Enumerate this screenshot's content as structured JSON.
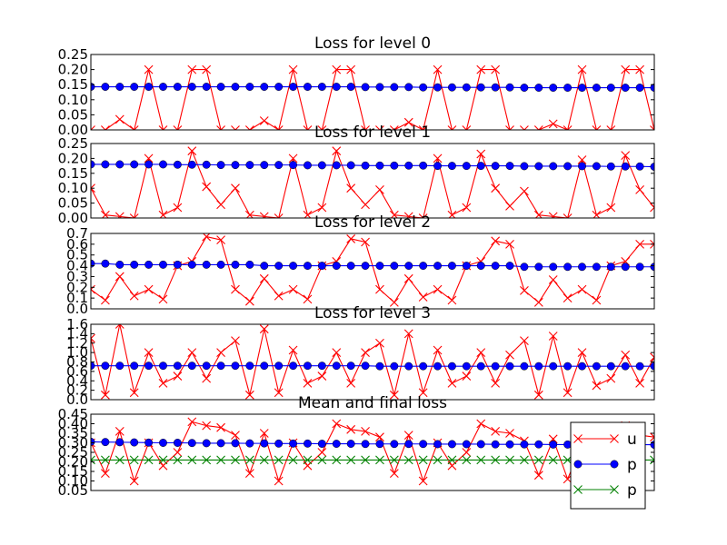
{
  "chart_data": [
    {
      "type": "line",
      "title": "Loss for level 0",
      "ylim": [
        0,
        0.25
      ],
      "yticks": [
        "0.00",
        "0.05",
        "0.10",
        "0.15",
        "0.20",
        "0.25"
      ],
      "grid": false,
      "series": [
        {
          "legend": "u",
          "color": "#ff0000",
          "marker": "x",
          "values": [
            0.0,
            0.0,
            0.035,
            0.0,
            0.2,
            0.0,
            0.0,
            0.2,
            0.2,
            0.0,
            0.0,
            0.0,
            0.03,
            0.0,
            0.2,
            0.0,
            0.0,
            0.2,
            0.2,
            0.0,
            0.0,
            0.0,
            0.025,
            0.0,
            0.2,
            0.0,
            0.0,
            0.2,
            0.2,
            0.0,
            0.0,
            0.0,
            0.02,
            0.0,
            0.2,
            0.0,
            0.0,
            0.2,
            0.2,
            0.0
          ]
        },
        {
          "legend": "p",
          "color": "#0000ff",
          "marker": "o",
          "values": [
            0.143,
            0.143,
            0.143,
            0.143,
            0.143,
            0.143,
            0.143,
            0.143,
            0.143,
            0.143,
            0.143,
            0.143,
            0.143,
            0.143,
            0.143,
            0.143,
            0.143,
            0.143,
            0.143,
            0.142,
            0.142,
            0.142,
            0.142,
            0.141,
            0.141,
            0.141,
            0.141,
            0.141,
            0.141,
            0.141,
            0.14,
            0.14,
            0.14,
            0.14,
            0.14,
            0.14,
            0.14,
            0.14,
            0.14,
            0.14
          ]
        }
      ]
    },
    {
      "type": "line",
      "title": "Loss for level 1",
      "ylim": [
        0,
        0.25
      ],
      "yticks": [
        "0.00",
        "0.05",
        "0.10",
        "0.15",
        "0.20",
        "0.25"
      ],
      "grid": false,
      "series": [
        {
          "legend": "u",
          "color": "#ff0000",
          "marker": "x",
          "values": [
            0.1,
            0.01,
            0.005,
            0.0,
            0.2,
            0.01,
            0.035,
            0.225,
            0.105,
            0.045,
            0.1,
            0.01,
            0.005,
            0.0,
            0.2,
            0.01,
            0.035,
            0.225,
            0.1,
            0.045,
            0.095,
            0.01,
            0.005,
            0.0,
            0.2,
            0.01,
            0.035,
            0.215,
            0.1,
            0.04,
            0.09,
            0.01,
            0.005,
            0.0,
            0.195,
            0.01,
            0.035,
            0.21,
            0.095,
            0.035
          ]
        },
        {
          "legend": "p",
          "color": "#0000ff",
          "marker": "o",
          "values": [
            0.18,
            0.18,
            0.18,
            0.18,
            0.18,
            0.18,
            0.179,
            0.179,
            0.179,
            0.178,
            0.178,
            0.178,
            0.178,
            0.178,
            0.178,
            0.177,
            0.177,
            0.177,
            0.177,
            0.176,
            0.176,
            0.176,
            0.176,
            0.176,
            0.175,
            0.175,
            0.175,
            0.175,
            0.175,
            0.175,
            0.174,
            0.174,
            0.174,
            0.174,
            0.174,
            0.174,
            0.173,
            0.173,
            0.173,
            0.172
          ]
        }
      ]
    },
    {
      "type": "line",
      "title": "Loss for level 2",
      "ylim": [
        0,
        0.7
      ],
      "yticks": [
        "0.0",
        "0.1",
        "0.2",
        "0.3",
        "0.4",
        "0.5",
        "0.6",
        "0.7"
      ],
      "grid": false,
      "series": [
        {
          "legend": "u",
          "color": "#ff0000",
          "marker": "x",
          "values": [
            0.18,
            0.08,
            0.3,
            0.12,
            0.18,
            0.09,
            0.4,
            0.44,
            0.67,
            0.64,
            0.18,
            0.07,
            0.28,
            0.12,
            0.18,
            0.09,
            0.4,
            0.44,
            0.65,
            0.62,
            0.18,
            0.06,
            0.28,
            0.11,
            0.18,
            0.08,
            0.4,
            0.44,
            0.63,
            0.6,
            0.17,
            0.06,
            0.27,
            0.1,
            0.18,
            0.08,
            0.4,
            0.44,
            0.6,
            0.6
          ]
        },
        {
          "legend": "p",
          "color": "#0000ff",
          "marker": "o",
          "values": [
            0.42,
            0.42,
            0.41,
            0.41,
            0.41,
            0.41,
            0.41,
            0.41,
            0.41,
            0.41,
            0.41,
            0.41,
            0.4,
            0.4,
            0.4,
            0.4,
            0.4,
            0.4,
            0.4,
            0.4,
            0.4,
            0.4,
            0.4,
            0.4,
            0.4,
            0.4,
            0.4,
            0.4,
            0.4,
            0.4,
            0.39,
            0.39,
            0.39,
            0.39,
            0.39,
            0.39,
            0.39,
            0.39,
            0.39,
            0.39
          ]
        }
      ]
    },
    {
      "type": "line",
      "title": "Loss for level 3",
      "ylim": [
        0,
        1.6
      ],
      "yticks": [
        "0.0",
        "0.2",
        "0.4",
        "0.6",
        "0.8",
        "1.0",
        "1.2",
        "1.4",
        "1.6"
      ],
      "grid": false,
      "series": [
        {
          "legend": "u",
          "color": "#ff0000",
          "marker": "x",
          "values": [
            1.3,
            0.1,
            1.6,
            0.15,
            1.0,
            0.35,
            0.5,
            1.0,
            0.45,
            1.0,
            1.25,
            0.1,
            1.5,
            0.15,
            1.05,
            0.35,
            0.5,
            1.0,
            0.35,
            1.0,
            1.2,
            0.1,
            1.4,
            0.15,
            1.05,
            0.35,
            0.5,
            1.0,
            0.35,
            0.95,
            1.25,
            0.1,
            1.35,
            0.15,
            1.0,
            0.3,
            0.45,
            0.95,
            0.35,
            0.9
          ]
        },
        {
          "legend": "p",
          "color": "#0000ff",
          "marker": "o",
          "values": [
            0.72,
            0.72,
            0.72,
            0.72,
            0.72,
            0.72,
            0.72,
            0.72,
            0.72,
            0.72,
            0.72,
            0.72,
            0.72,
            0.72,
            0.72,
            0.72,
            0.72,
            0.72,
            0.72,
            0.72,
            0.71,
            0.71,
            0.71,
            0.71,
            0.71,
            0.71,
            0.71,
            0.71,
            0.71,
            0.71,
            0.71,
            0.71,
            0.71,
            0.71,
            0.71,
            0.71,
            0.71,
            0.71,
            0.71,
            0.71
          ]
        }
      ]
    },
    {
      "type": "line",
      "title": "Mean and final loss",
      "ylim": [
        0.05,
        0.45
      ],
      "yticks": [
        "0.05",
        "0.10",
        "0.15",
        "0.20",
        "0.25",
        "0.30",
        "0.35",
        "0.40",
        "0.45"
      ],
      "grid": false,
      "legend_position": "lower-right",
      "series": [
        {
          "legend": "u",
          "color": "#ff0000",
          "marker": "x",
          "values": [
            0.3,
            0.14,
            0.36,
            0.1,
            0.3,
            0.18,
            0.25,
            0.41,
            0.39,
            0.38,
            0.34,
            0.14,
            0.35,
            0.1,
            0.3,
            0.18,
            0.25,
            0.4,
            0.37,
            0.36,
            0.33,
            0.14,
            0.34,
            0.1,
            0.3,
            0.18,
            0.25,
            0.4,
            0.36,
            0.35,
            0.31,
            0.13,
            0.32,
            0.11,
            0.29,
            0.17,
            0.24,
            0.39,
            0.34,
            0.33
          ]
        },
        {
          "legend": "p",
          "color": "#0000ff",
          "marker": "o",
          "values": [
            0.305,
            0.304,
            0.303,
            0.302,
            0.301,
            0.3,
            0.3,
            0.299,
            0.298,
            0.298,
            0.298,
            0.297,
            0.297,
            0.296,
            0.296,
            0.296,
            0.295,
            0.295,
            0.295,
            0.294,
            0.294,
            0.294,
            0.294,
            0.294,
            0.293,
            0.293,
            0.293,
            0.293,
            0.292,
            0.292,
            0.292,
            0.292,
            0.291,
            0.291,
            0.291,
            0.291,
            0.291,
            0.29,
            0.29,
            0.29
          ]
        },
        {
          "legend": "p",
          "color": "#008000",
          "marker": "x",
          "values": [
            0.21,
            0.21,
            0.21,
            0.21,
            0.21,
            0.21,
            0.21,
            0.21,
            0.21,
            0.21,
            0.21,
            0.21,
            0.21,
            0.21,
            0.21,
            0.21,
            0.21,
            0.21,
            0.21,
            0.21,
            0.21,
            0.21,
            0.21,
            0.21,
            0.21,
            0.21,
            0.21,
            0.21,
            0.21,
            0.21,
            0.21,
            0.21,
            0.21,
            0.21,
            0.21,
            0.21,
            0.21,
            0.21,
            0.21,
            0.21
          ]
        }
      ]
    }
  ]
}
